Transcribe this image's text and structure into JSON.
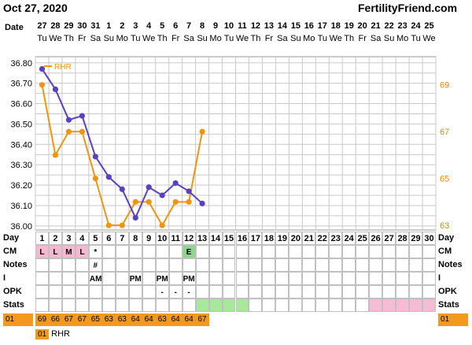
{
  "header": {
    "date": "Oct 27, 2020",
    "site": "FertilityFriend.com"
  },
  "labels": {
    "date": "Date",
    "day": "Day",
    "cm": "CM",
    "notes": "Notes",
    "intercourse": "I",
    "opk": "OPK",
    "stats": "Stats"
  },
  "calendar": {
    "dates": [
      "27",
      "28",
      "29",
      "30",
      "31",
      "1",
      "2",
      "3",
      "4",
      "5",
      "6",
      "7",
      "8",
      "9",
      "10",
      "11",
      "12",
      "13",
      "14",
      "15",
      "16",
      "17",
      "18",
      "19",
      "20",
      "21",
      "22",
      "23",
      "24",
      "25"
    ],
    "weekdays": [
      "Tu",
      "We",
      "Th",
      "Fr",
      "Sa",
      "Su",
      "Mo",
      "Tu",
      "We",
      "Th",
      "Fr",
      "Sa",
      "Su",
      "Mo",
      "Tu",
      "We",
      "Th",
      "Fr",
      "Sa",
      "Su",
      "Mo",
      "Tu",
      "We",
      "Th",
      "Fr",
      "Sa",
      "Su",
      "Mo",
      "Tu",
      "We"
    ],
    "cycle_days": [
      "1",
      "2",
      "3",
      "4",
      "5",
      "6",
      "7",
      "8",
      "9",
      "10",
      "11",
      "12",
      "13",
      "14",
      "15",
      "16",
      "17",
      "18",
      "19",
      "20",
      "21",
      "22",
      "23",
      "24",
      "25",
      "26",
      "27",
      "28",
      "29",
      "30"
    ]
  },
  "rows": {
    "cm": [
      "L",
      "L",
      "M",
      "L",
      "*",
      "",
      "",
      "",
      "",
      "",
      "",
      "E",
      "",
      "",
      "",
      "",
      "",
      "",
      "",
      "",
      "",
      "",
      "",
      "",
      "",
      "",
      "",
      "",
      "",
      ""
    ],
    "notes": [
      "",
      "",
      "",
      "",
      "#",
      "",
      "",
      "",
      "",
      "",
      "",
      "",
      "",
      "",
      "",
      "",
      "",
      "",
      "",
      "",
      "",
      "",
      "",
      "",
      "",
      "",
      "",
      "",
      "",
      ""
    ],
    "intercourse": [
      "",
      "",
      "",
      "",
      "AM",
      "",
      "",
      "PM",
      "",
      "PM",
      "",
      "PM",
      "",
      "",
      "",
      "",
      "",
      "",
      "",
      "",
      "",
      "",
      "",
      "",
      "",
      "",
      "",
      "",
      "",
      ""
    ],
    "opk": [
      "",
      "",
      "",
      "",
      "",
      "",
      "",
      "",
      "",
      "-",
      "-",
      "-",
      "",
      "",
      "",
      "",
      "",
      "",
      "",
      "",
      "",
      "",
      "",
      "",
      "",
      "",
      "",
      "",
      "",
      ""
    ],
    "rhr": [
      "69",
      "66",
      "67",
      "67",
      "65",
      "63",
      "63",
      "64",
      "64",
      "63",
      "64",
      "64",
      "67"
    ]
  },
  "rhr_label": "01",
  "rhr_legend_badge": "01",
  "rhr_legend_text": "RHR",
  "colors": {
    "temp_line": "#5b3fc4",
    "rhr_line": "#f0960e",
    "cm_highlight": "#f4b8d0",
    "e_highlight": "#8ed68e",
    "stats_green": "#a7e89a",
    "stats_pink": "#f6bcd4",
    "grid": "#c9c9c9",
    "rhr_band": "#f39a1e"
  },
  "chart_data": {
    "type": "line",
    "legend": [
      "RHR"
    ],
    "x": [
      "1",
      "2",
      "3",
      "4",
      "5",
      "6",
      "7",
      "8",
      "9",
      "10",
      "11",
      "12",
      "13"
    ],
    "series": [
      {
        "name": "",
        "axis": "left",
        "values": [
          36.77,
          36.67,
          36.52,
          36.54,
          36.34,
          36.24,
          36.18,
          36.04,
          36.19,
          36.15,
          36.21,
          36.17,
          36.11
        ]
      },
      {
        "name": "RHR",
        "axis": "right",
        "values": [
          69,
          66,
          67,
          67,
          65,
          63,
          63,
          64,
          64,
          63,
          64,
          64,
          67
        ]
      }
    ],
    "y_left_ticks": [
      "36.80",
      "36.70",
      "36.60",
      "36.50",
      "36.40",
      "36.30",
      "36.20",
      "36.10",
      "36.00"
    ],
    "y_right_ticks": [
      "69",
      "67",
      "65",
      "63"
    ],
    "ylim_left": [
      35.98,
      36.83
    ],
    "ylim_right": [
      62.8,
      70.2
    ],
    "grid": true
  }
}
